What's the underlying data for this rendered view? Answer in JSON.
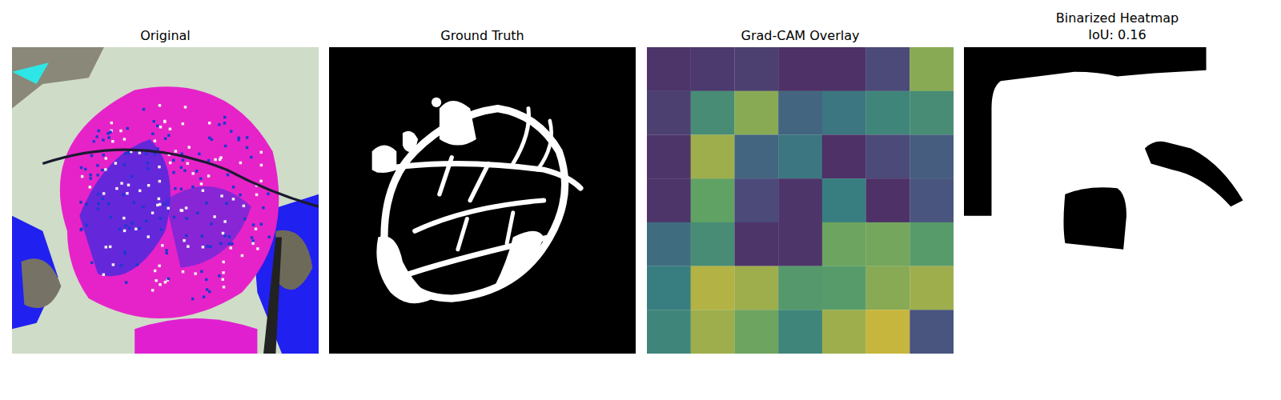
{
  "chart_data": [
    {
      "type": "image",
      "title": "Original"
    },
    {
      "type": "image",
      "title": "Ground Truth"
    },
    {
      "type": "heatmap",
      "title": "Grad-CAM Overlay",
      "tick_labels": false,
      "color_range": [
        0,
        1
      ],
      "cells": [
        [
          0.1,
          0.12,
          0.15,
          0.08,
          0.08,
          0.2,
          0.85
        ],
        [
          0.15,
          0.6,
          0.85,
          0.35,
          0.45,
          0.55,
          0.6
        ],
        [
          0.1,
          0.9,
          0.35,
          0.45,
          0.08,
          0.2,
          0.3
        ],
        [
          0.1,
          0.75,
          0.2,
          0.1,
          0.5,
          0.08,
          0.25
        ],
        [
          0.4,
          0.6,
          0.1,
          0.1,
          0.78,
          0.8,
          0.7
        ],
        [
          0.5,
          0.95,
          0.9,
          0.68,
          0.7,
          0.85,
          0.9
        ],
        [
          0.55,
          0.9,
          0.78,
          0.55,
          0.9,
          1.0,
          0.25
        ]
      ]
    },
    {
      "type": "image",
      "title": "Binarized Heatmap",
      "subtitle": "IoU: 0.16"
    }
  ]
}
